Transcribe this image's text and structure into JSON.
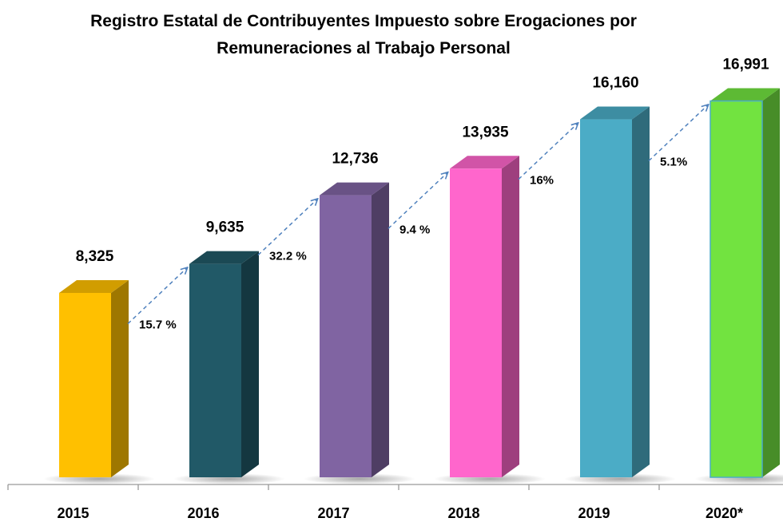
{
  "chart_data": {
    "type": "bar3d",
    "title": [
      "Registro Estatal de Contribuyentes  Impuesto sobre Erogaciones por",
      "Remuneraciones al Trabajo Personal"
    ],
    "categories": [
      "2015",
      "2016",
      "2017",
      "2018",
      "2019",
      "2020*"
    ],
    "values": [
      8325,
      9635,
      12736,
      13935,
      16160,
      16991
    ],
    "value_labels": [
      "8,325",
      "9,635",
      "12,736",
      "13,935",
      "16,160",
      "16,991"
    ],
    "colors": [
      "#FFC000",
      "#215967",
      "#8064A2",
      "#FF66CC",
      "#4BACC6",
      "#72E340"
    ],
    "annotations": [
      "15.7 %",
      "32.2 %",
      "9.4 %",
      "16%",
      "5.1%"
    ]
  }
}
